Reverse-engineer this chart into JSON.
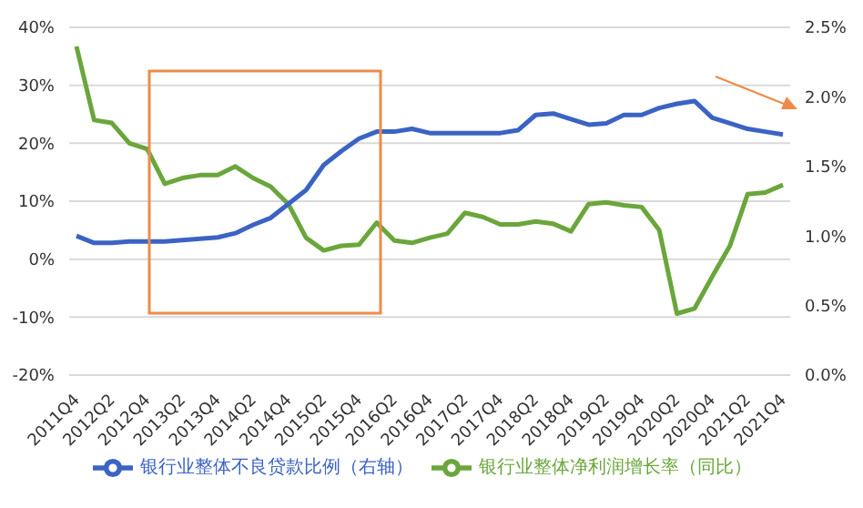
{
  "chart_data": {
    "type": "line",
    "categories": [
      "2011Q4",
      null,
      "2012Q2",
      null,
      "2012Q4",
      null,
      "2013Q2",
      null,
      "2013Q4",
      null,
      "2014Q2",
      null,
      "2014Q4",
      null,
      "2015Q2",
      null,
      "2015Q4",
      null,
      "2016Q2",
      null,
      "2016Q4",
      null,
      "2017Q2",
      null,
      "2017Q4",
      null,
      "2018Q2",
      null,
      "2018Q4",
      null,
      "2019Q2",
      null,
      "2019Q4",
      null,
      "2020Q2",
      null,
      "2020Q4",
      null,
      "2021Q2",
      null,
      "2021Q4"
    ],
    "series": [
      {
        "name": "银行业整体净利润增长率（同比）",
        "color": "#6aa63c",
        "values": [
          36.7,
          24,
          23.5,
          20,
          19,
          13,
          14,
          14.5,
          14.5,
          16,
          14,
          12.5,
          9.5,
          3.7,
          1.5,
          2.3,
          2.5,
          6.3,
          3.2,
          2.8,
          3.7,
          4.4,
          8,
          7.3,
          6,
          6,
          6.5,
          6.1,
          4.8,
          9.5,
          9.8,
          9.3,
          9,
          5,
          -9.4,
          -8.5,
          -3,
          2.3,
          11.2,
          11.5,
          12.8
        ]
      },
      {
        "name": "银行业整体不良贷款比例（右轴）",
        "color": "#3b63c4",
        "axis": "y2",
        "values": [
          1.0,
          0.95,
          0.95,
          0.96,
          0.96,
          0.96,
          0.97,
          0.98,
          0.99,
          1.02,
          1.08,
          1.13,
          1.23,
          1.33,
          1.51,
          1.61,
          1.7,
          1.75,
          1.75,
          1.77,
          1.74,
          1.74,
          1.74,
          1.74,
          1.74,
          1.76,
          1.87,
          1.88,
          1.84,
          1.8,
          1.81,
          1.87,
          1.87,
          1.92,
          1.95,
          1.97,
          1.85,
          1.81,
          1.77,
          1.75,
          1.73
        ]
      }
    ],
    "ylim": [
      -20,
      40
    ],
    "yticks": [
      {
        "value": -20,
        "label": "-20%"
      },
      {
        "value": -10,
        "label": "-10%"
      },
      {
        "value": 0,
        "label": "0%"
      },
      {
        "value": 10,
        "label": "10%"
      },
      {
        "value": 20,
        "label": "20%"
      },
      {
        "value": 30,
        "label": "30%"
      },
      {
        "value": 40,
        "label": "40%"
      }
    ],
    "y2lim": [
      0,
      2.5
    ],
    "y2ticks": [
      {
        "value": 0,
        "label": "0.0%"
      },
      {
        "value": 0.5,
        "label": "0.5%"
      },
      {
        "value": 1,
        "label": "1.0%"
      },
      {
        "value": 1.5,
        "label": "1.5%"
      },
      {
        "value": 2,
        "label": "2.0%"
      },
      {
        "value": 2.5,
        "label": "2.5%"
      }
    ],
    "grid": "y",
    "legend": "bottom",
    "marker": "none",
    "line_style": "solid"
  }
}
